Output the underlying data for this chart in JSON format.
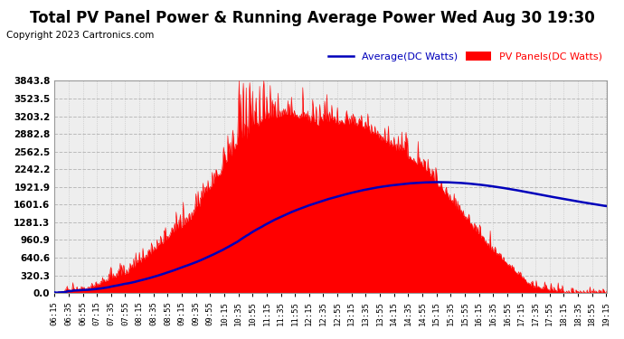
{
  "title": "Total PV Panel Power & Running Average Power Wed Aug 30 19:30",
  "copyright": "Copyright 2023 Cartronics.com",
  "legend_avg": "Average(DC Watts)",
  "legend_pv": "PV Panels(DC Watts)",
  "ytick_values": [
    0.0,
    320.3,
    640.6,
    960.9,
    1281.3,
    1601.6,
    1921.9,
    2242.2,
    2562.5,
    2882.8,
    3203.2,
    3523.5,
    3843.8
  ],
  "ylim": [
    0.0,
    3843.8
  ],
  "x_start_abs_min": 375,
  "x_end_abs_min": 1156,
  "x_tick_interval_min": 20,
  "background_color": "#ffffff",
  "plot_bg_color": "#eeeeee",
  "pv_color": "#ff0000",
  "avg_color": "#0000bb",
  "grid_color": "#bbbbbb",
  "title_color": "#000000",
  "copyright_color": "#000000",
  "title_fontsize": 12,
  "copyright_fontsize": 7.5,
  "xtick_fontsize": 6.5,
  "ytick_fontsize": 7.5
}
